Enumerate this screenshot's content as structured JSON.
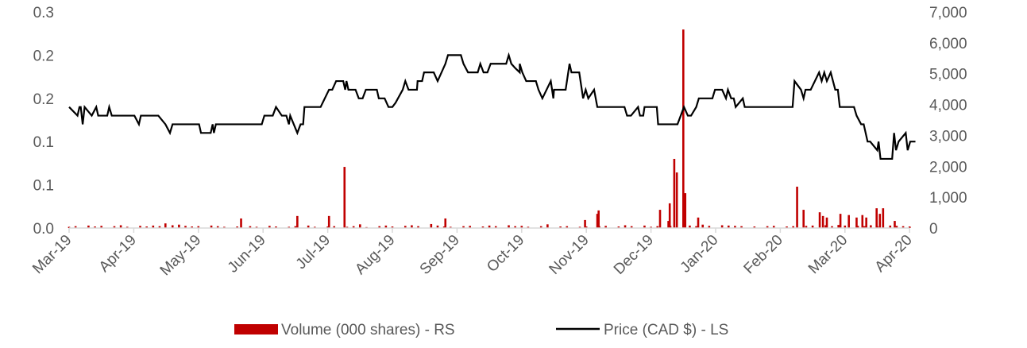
{
  "chart_data": {
    "type": "bar+line",
    "title": "",
    "x_tick_labels": [
      "Mar-19",
      "Apr-19",
      "May-19",
      "Jun-19",
      "Jul-19",
      "Aug-19",
      "Sep-19",
      "Oct-19",
      "Nov-19",
      "Dec-19",
      "Jan-20",
      "Feb-20",
      "Mar-20",
      "Apr-20"
    ],
    "left_axis": {
      "label": "Price (CAD $)",
      "ylim": [
        0,
        0.25
      ],
      "ticks": [
        0,
        0.05,
        0.1,
        0.15,
        0.2,
        0.25
      ],
      "tick_labels": [
        "0.0",
        "0.1",
        "0.1",
        "0.2",
        "0.2",
        "0.3"
      ]
    },
    "right_axis": {
      "label": "Volume (000 shares)",
      "ylim": [
        0,
        7000
      ],
      "ticks": [
        0,
        1000,
        2000,
        3000,
        4000,
        5000,
        6000,
        7000
      ],
      "tick_labels": [
        "0",
        "1,000",
        "2,000",
        "3,000",
        "4,000",
        "5,000",
        "6,000",
        "7,000"
      ]
    },
    "x_unit": "months since Mar-19",
    "series": [
      {
        "name": "Volume (000 shares) - RS",
        "type": "bar",
        "axis": "right",
        "color": "#c00000",
        "spikes": [
          [
            1.49,
            150
          ],
          [
            2.66,
            310
          ],
          [
            3.53,
            390
          ],
          [
            4.02,
            390
          ],
          [
            4.26,
            1980
          ],
          [
            5.82,
            310
          ],
          [
            7.98,
            260
          ],
          [
            8.17,
            460
          ],
          [
            8.19,
            570
          ],
          [
            9.14,
            590
          ],
          [
            9.27,
            230
          ],
          [
            9.29,
            800
          ],
          [
            9.36,
            2240
          ],
          [
            9.4,
            1800
          ],
          [
            9.5,
            6430
          ],
          [
            9.53,
            1130
          ],
          [
            9.73,
            340
          ],
          [
            11.26,
            1340
          ],
          [
            11.36,
            590
          ],
          [
            11.61,
            510
          ],
          [
            11.66,
            390
          ],
          [
            11.72,
            340
          ],
          [
            11.93,
            460
          ],
          [
            12.06,
            420
          ],
          [
            12.18,
            340
          ],
          [
            12.27,
            420
          ],
          [
            12.33,
            340
          ],
          [
            12.49,
            640
          ],
          [
            12.54,
            460
          ],
          [
            12.59,
            640
          ],
          [
            12.77,
            230
          ]
        ],
        "baseline_step": 0.1,
        "baseline": [
          40,
          60,
          0,
          80,
          50,
          70,
          0,
          60,
          90,
          40,
          0,
          70,
          50,
          80,
          60,
          0,
          90,
          110,
          70,
          50,
          60,
          0,
          80,
          60,
          40,
          0,
          50,
          0,
          60,
          40,
          0,
          70,
          50,
          0,
          40,
          60,
          0,
          80,
          40,
          0,
          50,
          60,
          0,
          40,
          60,
          120,
          30,
          0,
          60,
          80,
          50,
          0,
          70,
          90,
          60,
          0,
          130,
          80,
          50,
          40,
          0,
          60,
          70,
          0,
          50,
          80,
          60,
          0,
          90,
          60,
          70,
          40,
          0,
          60,
          120,
          0,
          50,
          60,
          0,
          40,
          50,
          0,
          60,
          70,
          0,
          50,
          90,
          60,
          0,
          80,
          40,
          60,
          0,
          70,
          50,
          0,
          80,
          60,
          110,
          70,
          0,
          90,
          80,
          70,
          60,
          0,
          50,
          0,
          60,
          70,
          0,
          50,
          60,
          0,
          70,
          80,
          0,
          90,
          60,
          100,
          80,
          0,
          70,
          60,
          90,
          60,
          0,
          80,
          70,
          60,
          50
        ],
        "legend": "Volume (000 shares) - RS"
      },
      {
        "name": "Price (CAD $) - LS",
        "type": "line",
        "axis": "left",
        "color": "#000000",
        "points": [
          [
            0.0,
            0.14
          ],
          [
            0.13,
            0.13
          ],
          [
            0.16,
            0.14
          ],
          [
            0.18,
            0.14
          ],
          [
            0.21,
            0.12
          ],
          [
            0.24,
            0.14
          ],
          [
            0.35,
            0.13
          ],
          [
            0.42,
            0.14
          ],
          [
            0.45,
            0.13
          ],
          [
            0.59,
            0.13
          ],
          [
            0.62,
            0.14
          ],
          [
            0.66,
            0.13
          ],
          [
            1.01,
            0.13
          ],
          [
            1.08,
            0.12
          ],
          [
            1.11,
            0.13
          ],
          [
            1.38,
            0.13
          ],
          [
            1.49,
            0.12
          ],
          [
            1.56,
            0.11
          ],
          [
            1.6,
            0.12
          ],
          [
            2.01,
            0.12
          ],
          [
            2.04,
            0.11
          ],
          [
            2.19,
            0.11
          ],
          [
            2.22,
            0.12
          ],
          [
            2.24,
            0.11
          ],
          [
            2.27,
            0.12
          ],
          [
            2.98,
            0.12
          ],
          [
            3.02,
            0.13
          ],
          [
            3.15,
            0.13
          ],
          [
            3.2,
            0.14
          ],
          [
            3.29,
            0.13
          ],
          [
            3.36,
            0.13
          ],
          [
            3.4,
            0.12
          ],
          [
            3.42,
            0.13
          ],
          [
            3.53,
            0.11
          ],
          [
            3.58,
            0.12
          ],
          [
            3.62,
            0.12
          ],
          [
            3.64,
            0.14
          ],
          [
            3.89,
            0.14
          ],
          [
            4.02,
            0.16
          ],
          [
            4.07,
            0.16
          ],
          [
            4.13,
            0.17
          ],
          [
            4.24,
            0.17
          ],
          [
            4.27,
            0.16
          ],
          [
            4.29,
            0.17
          ],
          [
            4.32,
            0.16
          ],
          [
            4.43,
            0.16
          ],
          [
            4.48,
            0.15
          ],
          [
            4.54,
            0.15
          ],
          [
            4.59,
            0.16
          ],
          [
            4.76,
            0.16
          ],
          [
            4.79,
            0.15
          ],
          [
            4.88,
            0.15
          ],
          [
            4.94,
            0.14
          ],
          [
            5.0,
            0.14
          ],
          [
            5.05,
            0.145
          ],
          [
            5.16,
            0.16
          ],
          [
            5.2,
            0.17
          ],
          [
            5.25,
            0.16
          ],
          [
            5.38,
            0.16
          ],
          [
            5.39,
            0.17
          ],
          [
            5.46,
            0.17
          ],
          [
            5.49,
            0.18
          ],
          [
            5.64,
            0.18
          ],
          [
            5.7,
            0.17
          ],
          [
            5.82,
            0.19
          ],
          [
            5.86,
            0.2
          ],
          [
            6.06,
            0.2
          ],
          [
            6.1,
            0.19
          ],
          [
            6.17,
            0.18
          ],
          [
            6.32,
            0.18
          ],
          [
            6.36,
            0.19
          ],
          [
            6.41,
            0.18
          ],
          [
            6.47,
            0.18
          ],
          [
            6.52,
            0.19
          ],
          [
            6.76,
            0.19
          ],
          [
            6.8,
            0.2
          ],
          [
            6.84,
            0.19
          ],
          [
            6.9,
            0.185
          ],
          [
            6.97,
            0.18
          ],
          [
            6.97,
            0.19
          ],
          [
            7.01,
            0.18
          ],
          [
            7.07,
            0.17
          ],
          [
            7.22,
            0.17
          ],
          [
            7.26,
            0.16
          ],
          [
            7.32,
            0.15
          ],
          [
            7.45,
            0.17
          ],
          [
            7.49,
            0.15
          ],
          [
            7.5,
            0.16
          ],
          [
            7.68,
            0.16
          ],
          [
            7.74,
            0.19
          ],
          [
            7.77,
            0.18
          ],
          [
            7.89,
            0.18
          ],
          [
            7.95,
            0.15
          ],
          [
            7.99,
            0.16
          ],
          [
            8.03,
            0.15
          ],
          [
            8.12,
            0.16
          ],
          [
            8.17,
            0.14
          ],
          [
            8.59,
            0.14
          ],
          [
            8.63,
            0.13
          ],
          [
            8.69,
            0.13
          ],
          [
            8.8,
            0.14
          ],
          [
            8.83,
            0.13
          ],
          [
            8.88,
            0.13
          ],
          [
            8.9,
            0.14
          ],
          [
            9.09,
            0.14
          ],
          [
            9.11,
            0.12
          ],
          [
            9.41,
            0.12
          ],
          [
            9.51,
            0.14
          ],
          [
            9.57,
            0.13
          ],
          [
            9.62,
            0.13
          ],
          [
            9.7,
            0.14
          ],
          [
            9.74,
            0.15
          ],
          [
            9.95,
            0.15
          ],
          [
            9.99,
            0.16
          ],
          [
            10.1,
            0.16
          ],
          [
            10.16,
            0.15
          ],
          [
            10.19,
            0.16
          ],
          [
            10.24,
            0.15
          ],
          [
            10.28,
            0.15
          ],
          [
            10.31,
            0.14
          ],
          [
            10.42,
            0.15
          ],
          [
            10.45,
            0.14
          ],
          [
            11.19,
            0.14
          ],
          [
            11.22,
            0.17
          ],
          [
            11.32,
            0.16
          ],
          [
            11.36,
            0.15
          ],
          [
            11.39,
            0.16
          ],
          [
            11.47,
            0.16
          ],
          [
            11.6,
            0.18
          ],
          [
            11.64,
            0.17
          ],
          [
            11.68,
            0.18
          ],
          [
            11.72,
            0.17
          ],
          [
            11.78,
            0.18
          ],
          [
            11.85,
            0.16
          ],
          [
            11.89,
            0.16
          ],
          [
            11.92,
            0.14
          ],
          [
            12.14,
            0.14
          ],
          [
            12.18,
            0.13
          ],
          [
            12.25,
            0.12
          ],
          [
            12.29,
            0.12
          ],
          [
            12.35,
            0.1
          ],
          [
            12.39,
            0.1
          ],
          [
            12.5,
            0.09
          ],
          [
            12.52,
            0.1
          ],
          [
            12.55,
            0.08
          ],
          [
            12.73,
            0.08
          ],
          [
            12.76,
            0.11
          ],
          [
            12.79,
            0.09
          ],
          [
            12.83,
            0.1
          ],
          [
            12.94,
            0.11
          ],
          [
            12.97,
            0.09
          ],
          [
            13.01,
            0.1
          ],
          [
            13.09,
            0.1
          ]
        ],
        "legend": "Price (CAD $) - LS"
      }
    ],
    "legend_position": "bottom",
    "grid": false
  }
}
